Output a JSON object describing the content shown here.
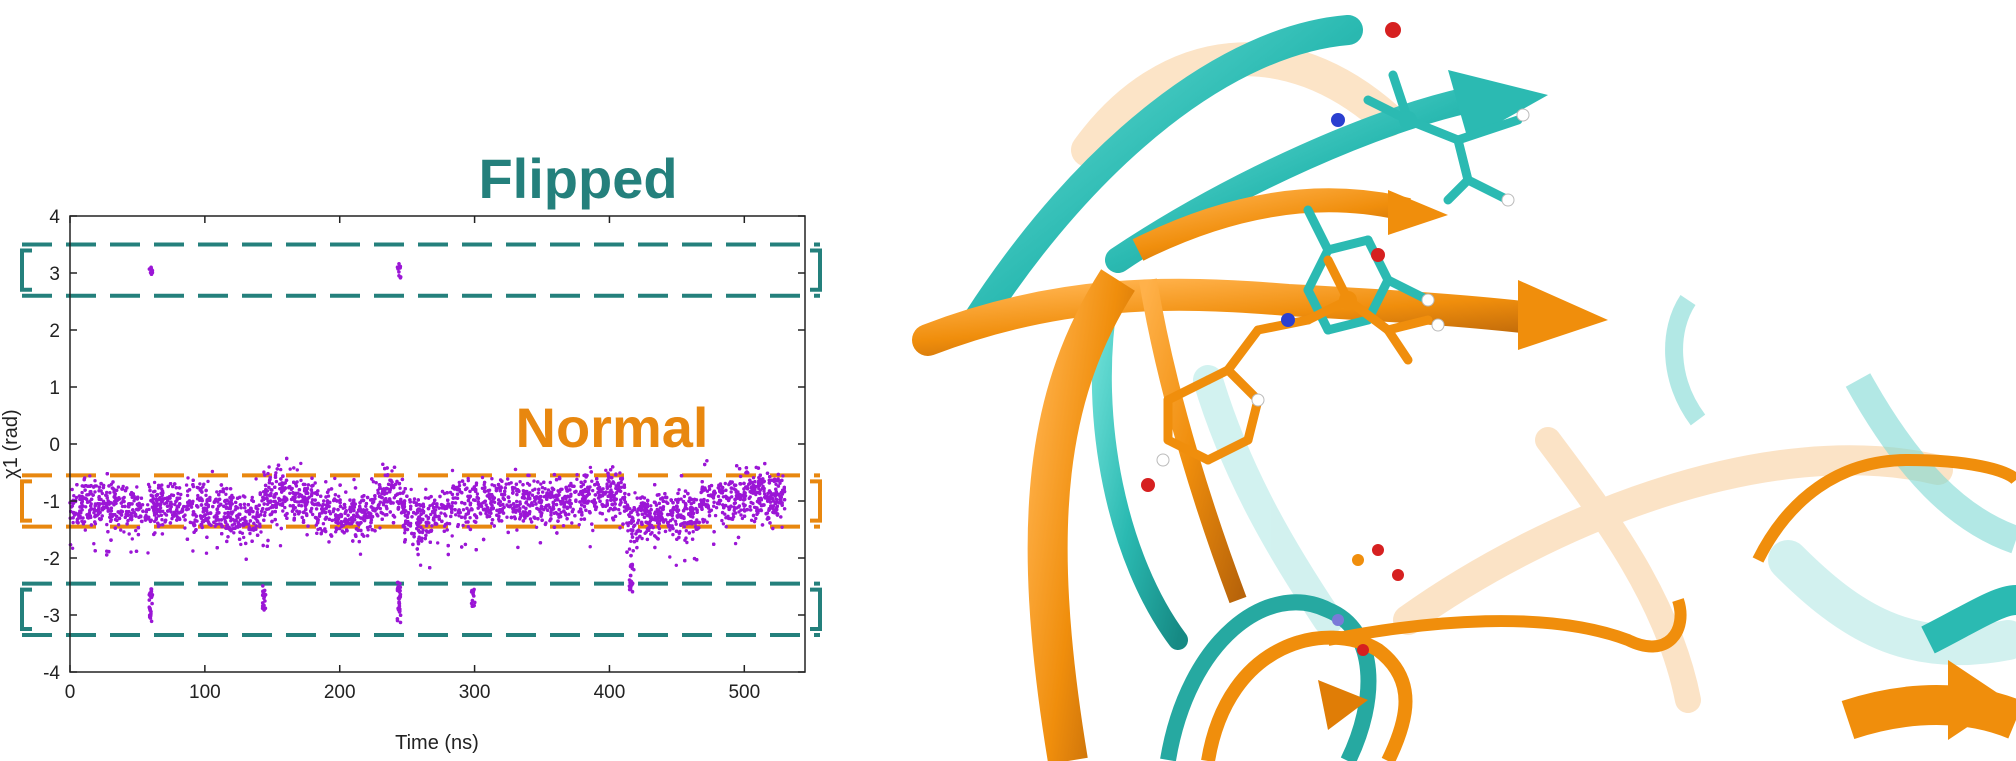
{
  "annotations": {
    "flipped": "Flipped",
    "normal": "Normal"
  },
  "colors": {
    "flipped": "#24807c",
    "normal": "#e8870f",
    "points": "#9b16d6",
    "cyan_structure": "#2bbab2",
    "orange_structure": "#f08e0c"
  },
  "chart_data": {
    "type": "scatter",
    "xlabel": "Time (ns)",
    "ylabel": "χ1 (rad)",
    "xlim": [
      0,
      545
    ],
    "ylim": [
      -4,
      4
    ],
    "xticks": [
      "0",
      "100",
      "200",
      "300",
      "400",
      "500"
    ],
    "yticks": [
      "-4",
      "-3",
      "-2",
      "-1",
      "0",
      "1",
      "2",
      "3",
      "4"
    ],
    "grid": false,
    "legend": "none",
    "regions": [
      {
        "state": "flipped",
        "y_range": [
          2.6,
          3.5
        ]
      },
      {
        "state": "normal",
        "y_range": [
          -1.45,
          -0.55
        ]
      },
      {
        "state": "flipped",
        "y_range": [
          -3.35,
          -2.45
        ]
      }
    ],
    "series": [
      {
        "point_count": 5300,
        "x_range": [
          0,
          530
        ],
        "baseline": [
          [
            0,
            -1.1
          ],
          [
            25,
            -1.05
          ],
          [
            55,
            -1.15
          ],
          [
            75,
            -1.1
          ],
          [
            100,
            -1.15
          ],
          [
            125,
            -1.25
          ],
          [
            140,
            -1.3
          ],
          [
            145,
            -0.9
          ],
          [
            175,
            -1.0
          ],
          [
            195,
            -1.25
          ],
          [
            225,
            -1.2
          ],
          [
            232,
            -0.9
          ],
          [
            245,
            -0.85
          ],
          [
            248,
            -1.3
          ],
          [
            270,
            -1.3
          ],
          [
            280,
            -1.1
          ],
          [
            300,
            -1.0
          ],
          [
            330,
            -1.0
          ],
          [
            345,
            -1.05
          ],
          [
            370,
            -0.95
          ],
          [
            400,
            -0.9
          ],
          [
            410,
            -0.85
          ],
          [
            415,
            -1.35
          ],
          [
            440,
            -1.25
          ],
          [
            465,
            -1.25
          ],
          [
            470,
            -0.95
          ],
          [
            500,
            -0.9
          ],
          [
            530,
            -0.95
          ]
        ],
        "transitions": [
          {
            "x": 60,
            "y_range": [
              2.95,
              3.2
            ]
          },
          {
            "x": 244,
            "y_range": [
              2.9,
              3.2
            ]
          },
          {
            "x": 60,
            "y_range": [
              -3.15,
              -2.5
            ]
          },
          {
            "x": 144,
            "y_range": [
              -2.95,
              -2.4
            ]
          },
          {
            "x": 244,
            "y_range": [
              -3.15,
              -2.4
            ]
          },
          {
            "x": 299,
            "y_range": [
              -2.85,
              -2.5
            ]
          },
          {
            "x": 416,
            "y_range": [
              -2.6,
              -2.1
            ]
          }
        ]
      }
    ]
  }
}
